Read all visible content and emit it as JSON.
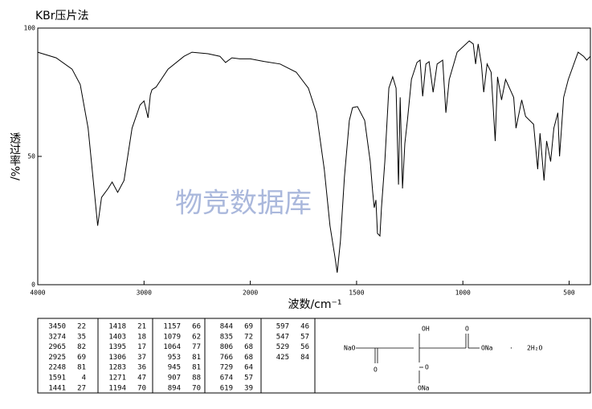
{
  "chart_data": {
    "type": "line",
    "title": "KBr压片法",
    "xlabel": "波数/cm⁻¹",
    "ylabel": "透过率%/",
    "watermark": "物竞数据库",
    "xlim": [
      4000,
      400
    ],
    "x_scale_break": 2000,
    "ylim": [
      0,
      100
    ],
    "xticks": [
      4000,
      3000,
      2000,
      1500,
      1000,
      500
    ],
    "yticks": [
      0,
      50,
      100
    ],
    "color": "#000000",
    "x": [
      4000,
      3827,
      3677,
      3600,
      3526,
      3474,
      3436,
      3400,
      3338,
      3300,
      3248,
      3188,
      3113,
      3038,
      3000,
      2962,
      2940,
      2925,
      2887,
      2774,
      2624,
      2549,
      2398,
      2286,
      2233,
      2173,
      2098,
      2000,
      1936,
      1860,
      1784,
      1727,
      1689,
      1652,
      1625,
      1602,
      1591,
      1576,
      1557,
      1534,
      1519,
      1496,
      1462,
      1436,
      1424,
      1417,
      1409,
      1402,
      1390,
      1383,
      1367,
      1348,
      1330,
      1314,
      1303,
      1295,
      1284,
      1273,
      1261,
      1242,
      1216,
      1201,
      1189,
      1174,
      1159,
      1140,
      1121,
      1095,
      1080,
      1064,
      1027,
      970,
      951,
      940,
      928,
      913,
      902,
      886,
      867,
      848,
      837,
      818,
      799,
      761,
      750,
      723,
      705,
      667,
      648,
      637,
      618,
      606,
      587,
      572,
      553,
      545,
      526,
      504,
      458,
      432,
      417,
      400
    ],
    "values": [
      90.6,
      88.4,
      84,
      78,
      61,
      39,
      23,
      34,
      37.5,
      40,
      36,
      40.6,
      61,
      70,
      71.6,
      65,
      74,
      76,
      77,
      84,
      89,
      90.6,
      90,
      89,
      86.6,
      88.4,
      88,
      88,
      87,
      86,
      82.8,
      76.6,
      67,
      45,
      23,
      11,
      4.7,
      17,
      42,
      64,
      69,
      69.4,
      64,
      48,
      36,
      30,
      33,
      20,
      19,
      30,
      48,
      76.6,
      81,
      76.6,
      39,
      73,
      37.5,
      55,
      64,
      80,
      86.6,
      87.5,
      73.4,
      86,
      86.9,
      75,
      86,
      87.5,
      67,
      80,
      90.6,
      95,
      93.8,
      86,
      93.8,
      86,
      75,
      86,
      82.8,
      56,
      81,
      72,
      80,
      73,
      61,
      72,
      65.6,
      62.5,
      45,
      59,
      40.6,
      56,
      48,
      61,
      67,
      50,
      73,
      80,
      90.6,
      89,
      87.5,
      89
    ],
    "peak_table": [
      [
        3450,
        22
      ],
      [
        3274,
        35
      ],
      [
        2965,
        82
      ],
      [
        2925,
        69
      ],
      [
        2248,
        81
      ],
      [
        1591,
        4
      ],
      [
        1441,
        27
      ],
      [
        1418,
        21
      ],
      [
        1403,
        18
      ],
      [
        1395,
        17
      ],
      [
        1306,
        37
      ],
      [
        1283,
        36
      ],
      [
        1271,
        47
      ],
      [
        1194,
        70
      ],
      [
        1157,
        66
      ],
      [
        1079,
        62
      ],
      [
        1064,
        77
      ],
      [
        953,
        81
      ],
      [
        945,
        81
      ],
      [
        907,
        88
      ],
      [
        894,
        70
      ],
      [
        844,
        69
      ],
      [
        835,
        72
      ],
      [
        806,
        68
      ],
      [
        766,
        68
      ],
      [
        729,
        64
      ],
      [
        674,
        57
      ],
      [
        619,
        39
      ],
      [
        597,
        46
      ],
      [
        547,
        57
      ],
      [
        529,
        56
      ],
      [
        425,
        84
      ]
    ],
    "structure": {
      "labels": [
        "NaO",
        "O",
        "OH",
        "O",
        "ONa",
        "O",
        "ONa",
        "·",
        "2H₂O"
      ]
    }
  }
}
